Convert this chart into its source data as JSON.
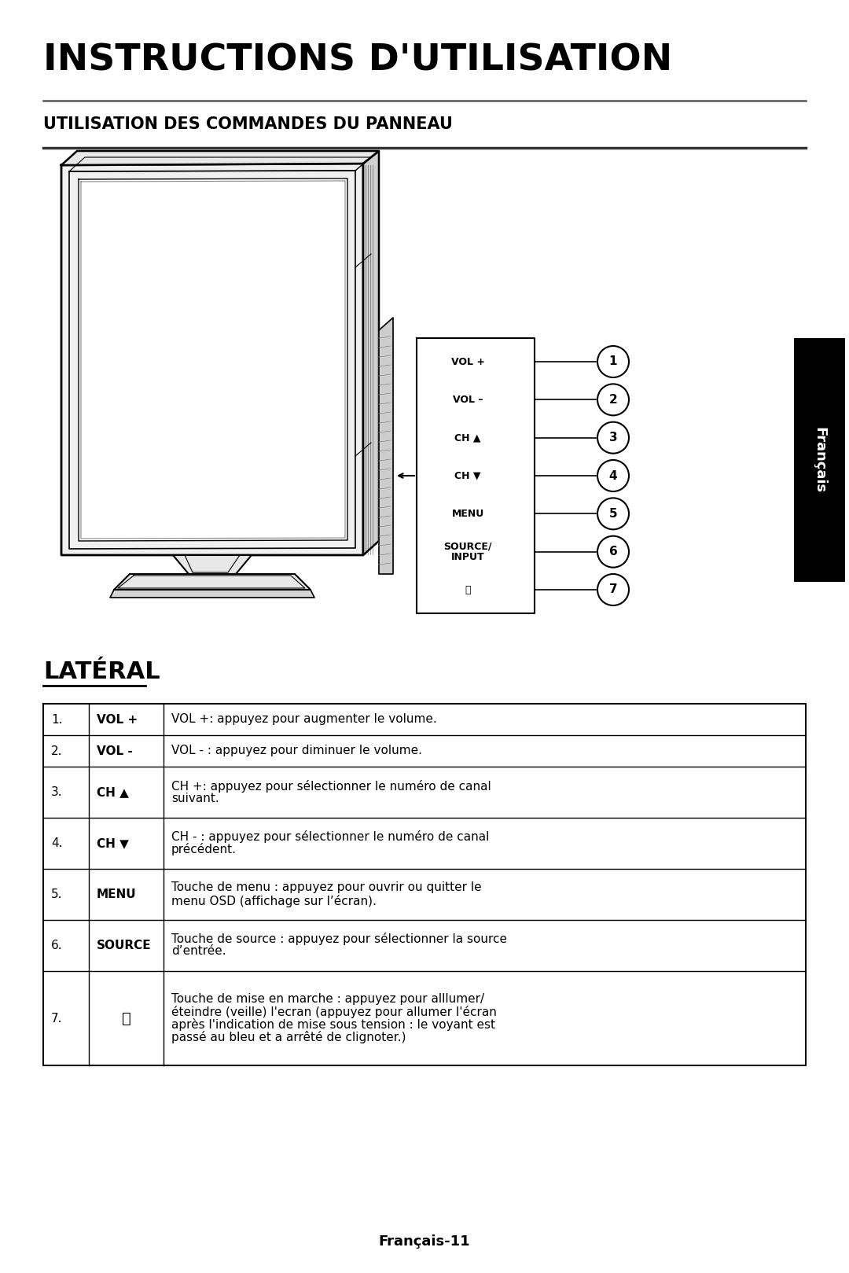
{
  "title": "INSTRUCTIONS D'UTILISATION",
  "subtitle": "UTILISATION DES COMMANDES DU PANNEAU",
  "lateral_title": "LATÉRAL",
  "footer": "Français-11",
  "sidebar_text": "Français",
  "table_rows": [
    [
      "1.",
      "VOL +",
      "VOL +: appuyez pour augmenter le volume."
    ],
    [
      "2.",
      "VOL -",
      "VOL - : appuyez pour diminuer le volume."
    ],
    [
      "3.",
      "CH ▲",
      "CH +: appuyez pour sélectionner le numéro de canal\nsuivant."
    ],
    [
      "4.",
      "CH ▼",
      "CH - : appuyez pour sélectionner le numéro de canal\nprécédent."
    ],
    [
      "5.",
      "MENU",
      "Touche de menu : appuyez pour ouvrir ou quitter le\nmenu OSD (affichage sur l’écran)."
    ],
    [
      "6.",
      "SOURCE",
      "Touche de source : appuyez pour sélectionner la source\nd’entrée."
    ],
    [
      "7.",
      "⏻",
      "Touche de mise en marche : appuyez pour alllumer/\néteindre (veille) l'ecran (appuyez pour allumer l'écran\naprès l'indication de mise sous tension : le voyant est\npassé au bleu et a arrêté de clignoter.)"
    ]
  ],
  "bg_color": "#ffffff",
  "text_color": "#000000",
  "sidebar_bg": "#000000",
  "sidebar_fg": "#ffffff",
  "control_labels": [
    "VOL +",
    "VOL –",
    "CH ▲",
    "CH ▼",
    "MENU",
    "SOURCE/\nINPUT",
    "⏻"
  ],
  "control_numbers": [
    "1",
    "2",
    "3",
    "4",
    "5",
    "6",
    "7"
  ],
  "title_fontsize": 34,
  "subtitle_fontsize": 15,
  "lateral_fontsize": 22,
  "table_fontsize": 11,
  "footer_fontsize": 13
}
